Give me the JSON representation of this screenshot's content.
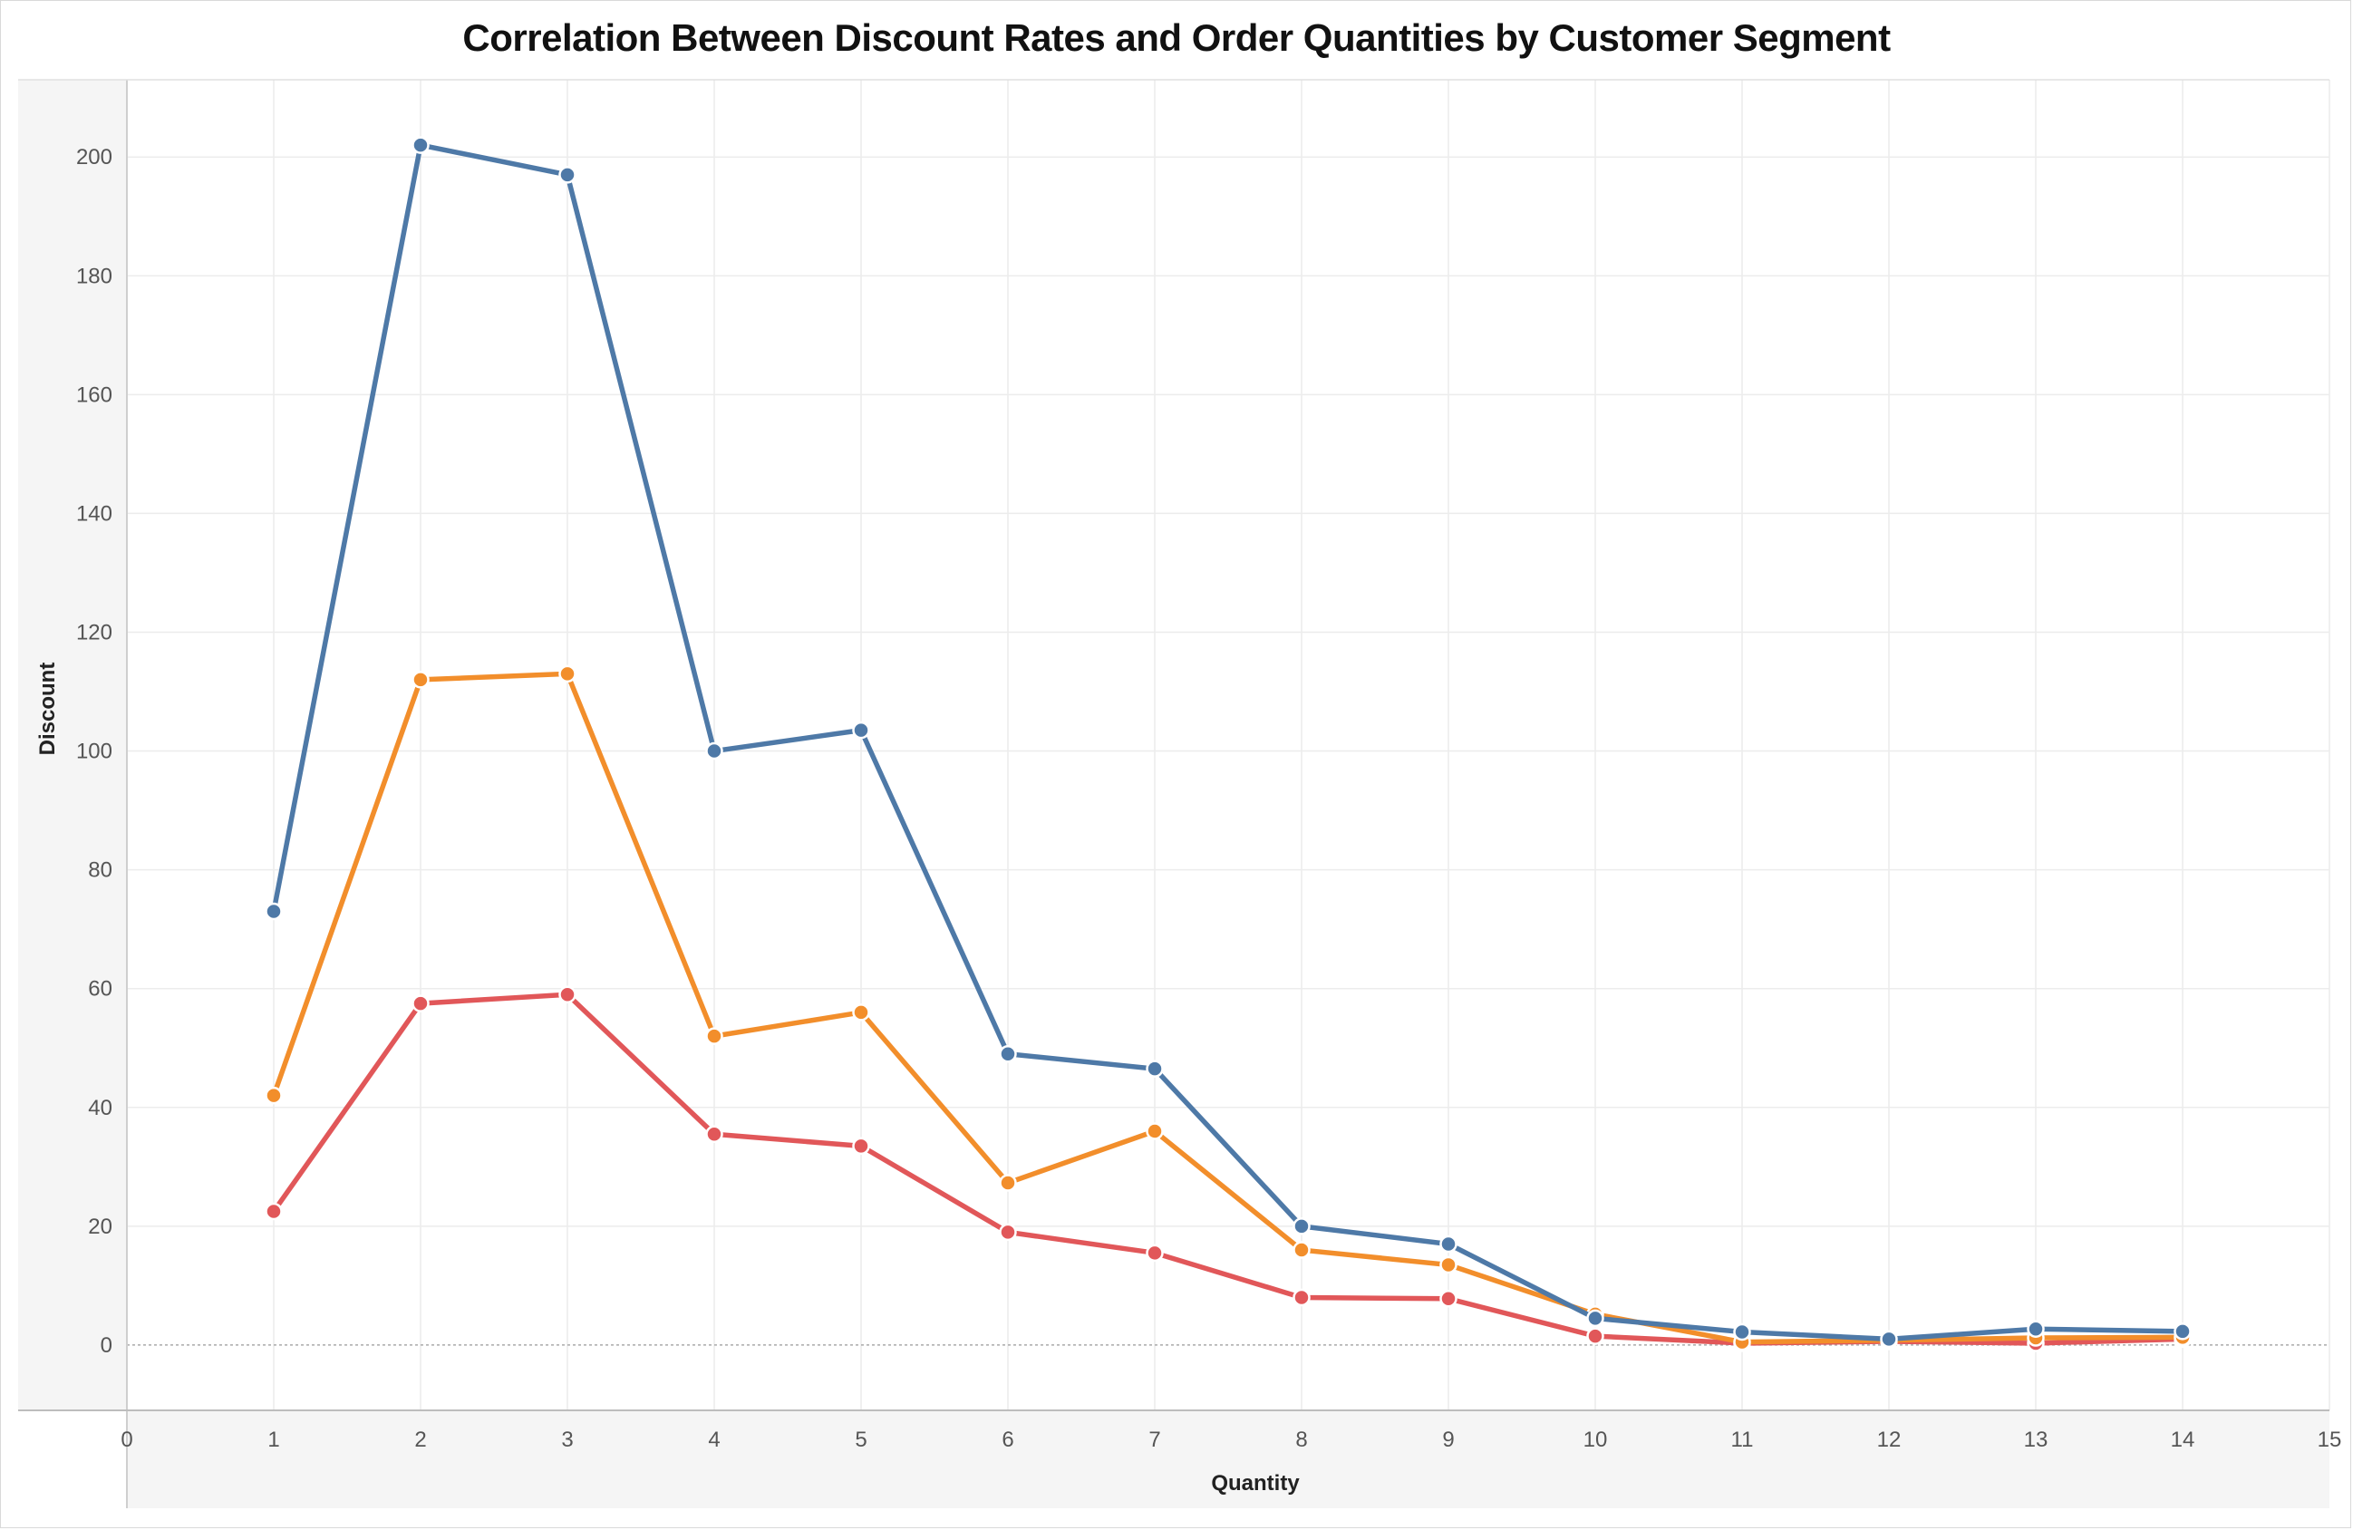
{
  "chart_data": {
    "type": "line",
    "title": "Correlation Between Discount Rates and Order Quantities by Customer Segment",
    "xlabel": "Quantity",
    "ylabel": "Discount",
    "xlim": [
      0,
      15
    ],
    "ylim": [
      -11,
      213
    ],
    "x_ticks": [
      0,
      1,
      2,
      3,
      4,
      5,
      6,
      7,
      8,
      9,
      10,
      11,
      12,
      13,
      14,
      15
    ],
    "y_ticks": [
      0,
      20,
      40,
      60,
      80,
      100,
      120,
      140,
      160,
      180,
      200
    ],
    "grid": true,
    "legend": "none",
    "x": [
      1,
      2,
      3,
      4,
      5,
      6,
      7,
      8,
      9,
      10,
      11,
      12,
      13,
      14
    ],
    "series": [
      {
        "color": "#4e79a7",
        "values": [
          73,
          202,
          197,
          100,
          103.5,
          49,
          46.5,
          20,
          17,
          4.5,
          2.2,
          1,
          2.7,
          2.3
        ]
      },
      {
        "color": "#f28e2b",
        "values": [
          42,
          112,
          113,
          52,
          56,
          27.3,
          36,
          16,
          13.5,
          5.2,
          0.5,
          0.8,
          1.2,
          1.3
        ]
      },
      {
        "color": "#e15759",
        "values": [
          22.5,
          57.5,
          59,
          35.5,
          33.5,
          19,
          15.5,
          8,
          7.8,
          1.5,
          0.3,
          0.6,
          0.3,
          1
        ]
      }
    ]
  }
}
